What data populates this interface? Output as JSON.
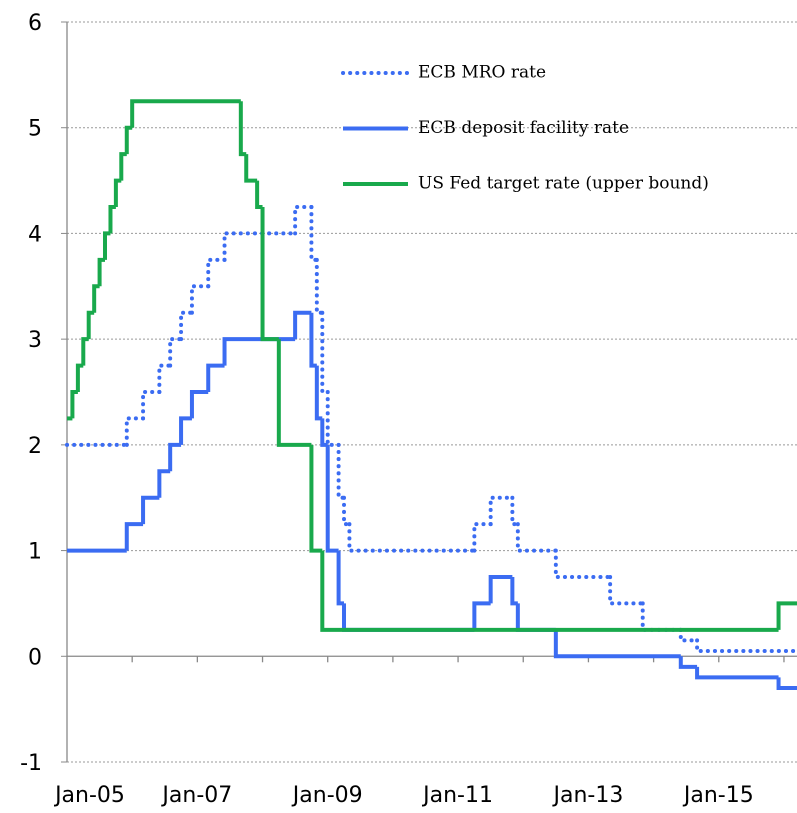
{
  "chart_data": {
    "type": "step-line",
    "xlim": [
      2005,
      2016.2
    ],
    "xticks": [
      {
        "value": 2005,
        "label": "Jan-05"
      },
      {
        "value": 2007,
        "label": "Jan-07"
      },
      {
        "value": 2009,
        "label": "Jan-09"
      },
      {
        "value": 2011,
        "label": "Jan-11"
      },
      {
        "value": 2013,
        "label": "Jan-13"
      },
      {
        "value": 2015,
        "label": "Jan-15"
      }
    ],
    "x_minor_ticks": [
      2006,
      2007,
      2008,
      2009,
      2010,
      2011,
      2012,
      2013,
      2014,
      2015,
      2016
    ],
    "ylim": [
      -1,
      6
    ],
    "yticks": [
      -1,
      0,
      1,
      2,
      3,
      4,
      5,
      6
    ],
    "grid": true,
    "series": [
      {
        "name": "ECB MRO rate",
        "color": "#3b6cf2",
        "style": "dotted",
        "x": [
          2005.0,
          2005.917,
          2006.167,
          2006.417,
          2006.583,
          2006.75,
          2006.917,
          2007.167,
          2007.417,
          2008.5,
          2008.75,
          2008.833,
          2008.917,
          2009.0,
          2009.167,
          2009.25,
          2009.333,
          2011.25,
          2011.5,
          2011.833,
          2011.917,
          2012.5,
          2013.333,
          2013.833,
          2014.417,
          2014.667
        ],
        "values": [
          2.0,
          2.25,
          2.5,
          2.75,
          3.0,
          3.25,
          3.5,
          3.75,
          4.0,
          4.25,
          3.75,
          3.25,
          2.5,
          2.0,
          1.5,
          1.25,
          1.0,
          1.25,
          1.5,
          1.25,
          1.0,
          0.75,
          0.5,
          0.25,
          0.15,
          0.05
        ]
      },
      {
        "name": "ECB deposit facility rate",
        "color": "#3b6cf2",
        "style": "solid",
        "x": [
          2005.0,
          2005.917,
          2006.167,
          2006.417,
          2006.583,
          2006.75,
          2006.917,
          2007.167,
          2007.417,
          2008.5,
          2008.75,
          2008.833,
          2008.917,
          2009.0,
          2009.167,
          2009.25,
          2011.25,
          2011.5,
          2011.833,
          2011.917,
          2012.5,
          2014.417,
          2014.667,
          2015.917
        ],
        "values": [
          1.0,
          1.25,
          1.5,
          1.75,
          2.0,
          2.25,
          2.5,
          2.75,
          3.0,
          3.25,
          2.75,
          2.25,
          2.0,
          1.0,
          0.5,
          0.25,
          0.5,
          0.75,
          0.5,
          0.25,
          0.0,
          -0.1,
          -0.2,
          -0.3
        ]
      },
      {
        "name": "US Fed target rate (upper bound)",
        "color": "#19a94c",
        "style": "solid",
        "x": [
          2005.0,
          2005.083,
          2005.167,
          2005.25,
          2005.333,
          2005.417,
          2005.5,
          2005.583,
          2005.667,
          2005.75,
          2005.833,
          2005.917,
          2006.0,
          2007.667,
          2007.75,
          2007.917,
          2008.0,
          2008.25,
          2008.75,
          2008.917,
          2015.917
        ],
        "values": [
          2.25,
          2.5,
          2.75,
          3.0,
          3.25,
          3.5,
          3.75,
          4.0,
          4.25,
          4.5,
          4.75,
          5.0,
          5.25,
          4.75,
          4.5,
          4.25,
          3.0,
          2.0,
          1.0,
          0.25,
          0.5
        ]
      }
    ]
  }
}
